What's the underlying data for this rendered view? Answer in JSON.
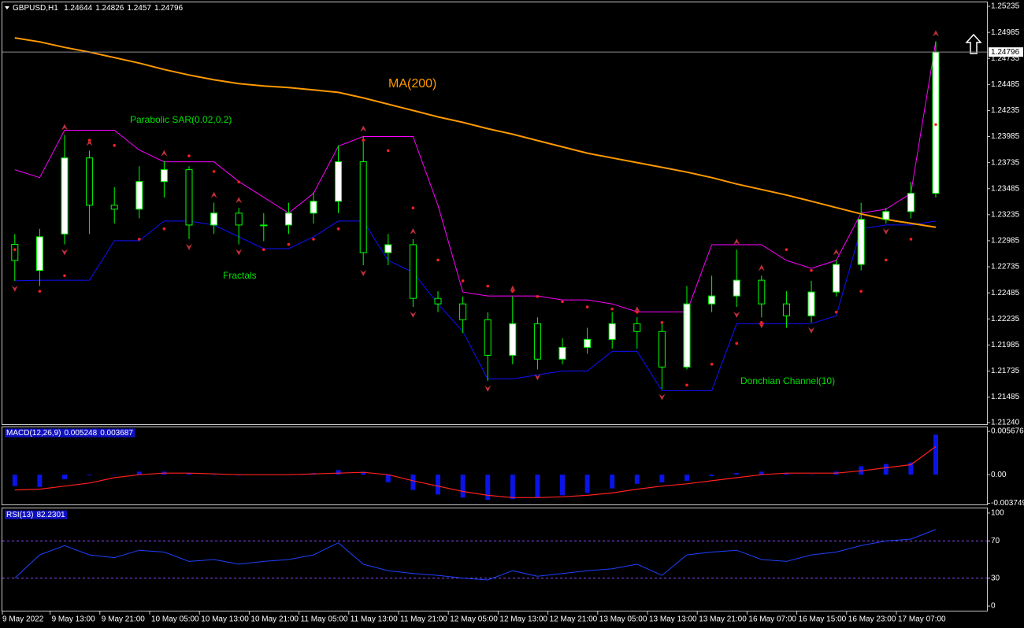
{
  "chart_data": [
    {
      "type": "candlestick",
      "title": "GBPUSD,H1",
      "header_ohlc": [
        1.24644,
        1.24826,
        1.2457,
        1.24796
      ],
      "categories": [
        "9 May 2022",
        null,
        null,
        "9 May 13:00",
        null,
        "9 May 21:00",
        null,
        "10 May 05:00",
        null,
        "10 May 13:00",
        null,
        "10 May 21:00",
        null,
        "11 May 05:00",
        null,
        "11 May 13:00",
        null,
        "11 May 21:00",
        null,
        "12 May 05:00",
        null,
        "12 May 13:00",
        null,
        "12 May 21:00",
        null,
        "13 May 05:00",
        null,
        "13 May 13:00",
        null,
        "13 May 21:00",
        null,
        "16 May 07:00",
        null,
        "16 May 15:00",
        null,
        "16 May 23:00",
        null,
        "17 May 07:00"
      ],
      "open": [
        1.2295,
        1.227,
        1.2305,
        1.2378,
        1.23326,
        1.23288,
        1.23553,
        1.23667,
        1.23136,
        1.2325,
        1.23136,
        1.23136,
        1.2325,
        1.23364,
        1.23743,
        1.22871,
        1.22947,
        1.22432,
        1.22379,
        1.22227,
        1.21886,
        1.22189,
        1.21849,
        1.21962,
        1.22038,
        1.22189,
        1.22114,
        1.21773,
        1.22379,
        1.22455,
        1.22606,
        1.22379,
        1.22265,
        1.22493,
        1.22758,
        1.2319,
        1.23265,
        1.2344
      ],
      "high": [
        1.2305,
        1.231,
        1.24,
        1.2385,
        1.235,
        1.237,
        1.2375,
        1.237,
        1.2335,
        1.233,
        1.2325,
        1.2335,
        1.2345,
        1.239,
        1.23985,
        1.2305,
        1.23,
        1.225,
        1.2245,
        1.223,
        1.2245,
        1.2225,
        1.2205,
        1.2215,
        1.223,
        1.2225,
        1.222,
        1.2255,
        1.2265,
        1.229,
        1.2265,
        1.225,
        1.226,
        1.228,
        1.2335,
        1.233,
        1.2355,
        1.249
      ],
      "low": [
        1.226,
        1.2255,
        1.2295,
        1.2305,
        1.2315,
        1.232,
        1.234,
        1.23,
        1.2305,
        1.2295,
        1.2298,
        1.2305,
        1.2315,
        1.2325,
        1.2275,
        1.2275,
        1.2235,
        1.223,
        1.221,
        1.2164,
        1.218,
        1.2175,
        1.218,
        1.219,
        1.2195,
        1.2195,
        1.2156,
        1.2175,
        1.223,
        1.2235,
        1.2225,
        1.2215,
        1.222,
        1.2245,
        1.227,
        1.2315,
        1.232,
        1.234
      ],
      "close": [
        1.22796,
        1.23023,
        1.2378,
        1.23326,
        1.23288,
        1.23553,
        1.23667,
        1.23136,
        1.2325,
        1.23136,
        1.23136,
        1.2325,
        1.23364,
        1.23743,
        1.22871,
        1.22947,
        1.22432,
        1.22379,
        1.22227,
        1.21886,
        1.22189,
        1.21849,
        1.21962,
        1.22038,
        1.22189,
        1.22114,
        1.21773,
        1.22379,
        1.22455,
        1.22606,
        1.22379,
        1.22265,
        1.22493,
        1.22758,
        1.2319,
        1.23265,
        1.2344,
        1.24796
      ],
      "overlays": {
        "ma200": [
          1.24932,
          1.24894,
          1.24841,
          1.24796,
          1.24743,
          1.2469,
          1.24629,
          1.24576,
          1.2453,
          1.24493,
          1.2447,
          1.24455,
          1.24432,
          1.24409,
          1.24356,
          1.24296,
          1.24235,
          1.24174,
          1.24121,
          1.24061,
          1.24008,
          1.23947,
          1.23886,
          1.23826,
          1.2378,
          1.23735,
          1.2369,
          1.23644,
          1.23591,
          1.2353,
          1.23477,
          1.23424,
          1.23364,
          1.23303,
          1.23243,
          1.2319,
          1.23152,
          1.23114
        ],
        "donchian_upper": [
          1.23667,
          1.23591,
          1.24046,
          1.24046,
          1.24046,
          1.23856,
          1.23743,
          1.23743,
          1.23743,
          1.23553,
          1.23402,
          1.2325,
          1.2344,
          1.23894,
          1.23985,
          1.23985,
          1.23985,
          1.23326,
          1.22493,
          1.22455,
          1.22455,
          1.22455,
          1.22417,
          1.22417,
          1.22379,
          1.22303,
          1.22303,
          1.22303,
          1.22947,
          1.22947,
          1.22947,
          1.22796,
          1.2272,
          1.22796,
          1.2325,
          1.23288,
          1.2344,
          1.249
        ],
        "donchian_lower": [
          1.226,
          1.22606,
          1.22606,
          1.22606,
          1.22985,
          1.22985,
          1.23174,
          1.23174,
          1.23136,
          1.23023,
          1.22909,
          1.22909,
          1.23023,
          1.23174,
          1.23174,
          1.22796,
          1.22682,
          1.22379,
          1.22114,
          1.21659,
          1.21659,
          1.21697,
          1.21735,
          1.21735,
          1.21924,
          1.21924,
          1.21546,
          1.21546,
          1.21546,
          1.22189,
          1.22189,
          1.22189,
          1.22189,
          1.22265,
          1.23099,
          1.23136,
          1.23136,
          1.23174
        ],
        "sar": [
          1.229,
          1.225,
          1.2265,
          1.2395,
          1.239,
          1.23,
          1.231,
          1.238,
          1.2365,
          1.2355,
          1.229,
          1.2295,
          1.23,
          1.231,
          1.2395,
          1.2385,
          1.233,
          1.228,
          1.226,
          1.2255,
          1.225,
          1.2245,
          1.224,
          1.2235,
          1.2233,
          1.223,
          1.222,
          1.216,
          1.218,
          1.22,
          1.222,
          1.229,
          1.227,
          1.223,
          1.225,
          1.228,
          1.23,
          1.241
        ],
        "fractals_up": [
          null,
          null,
          1.24,
          1.2385,
          null,
          null,
          1.2375,
          null,
          1.2335,
          1.233,
          null,
          null,
          null,
          null,
          1.23985,
          null,
          1.23,
          null,
          null,
          null,
          1.2245,
          null,
          null,
          null,
          null,
          1.2225,
          null,
          null,
          null,
          1.229,
          1.2265,
          null,
          null,
          1.228,
          null,
          null,
          null,
          1.249
        ],
        "fractals_down": [
          1.226,
          null,
          1.2295,
          null,
          null,
          null,
          null,
          1.23,
          null,
          1.2295,
          null,
          null,
          null,
          null,
          1.2275,
          null,
          1.2235,
          null,
          null,
          1.2164,
          null,
          1.2175,
          null,
          null,
          null,
          null,
          1.2156,
          null,
          null,
          1.2235,
          1.2225,
          null,
          1.222,
          null,
          null,
          1.2315,
          null,
          null
        ]
      },
      "colors": {
        "bull": "#ffffff",
        "bear": "#000000",
        "wick": "#00ff00",
        "ma200": "#ff9900",
        "sar": "#ff2020",
        "donchian_upper": "#ff00ff",
        "donchian_lower": "#1010ff",
        "fractals": "#c0303a"
      },
      "annotations": [
        {
          "text": "MA(200)",
          "color": "#ff9900"
        },
        {
          "text": "Parabolic SAR(0.02,0.2)",
          "color": "#00e000"
        },
        {
          "text": "Fractals",
          "color": "#00e000"
        },
        {
          "text": "Donchian Channel(10)",
          "color": "#00e000"
        }
      ],
      "ylim": [
        1.21217,
        1.25273
      ],
      "yticks": [
        1.25235,
        1.24985,
        1.24735,
        1.24485,
        1.24235,
        1.23985,
        1.23735,
        1.23485,
        1.23235,
        1.22985,
        1.22735,
        1.22485,
        1.22235,
        1.21985,
        1.21735,
        1.21485,
        {
          "value": 1.2124,
          "label": "1.21240"
        }
      ]
    },
    {
      "type": "macd",
      "title": "MACD(12,26,9)",
      "series": [
        {
          "name": "histogram",
          "color": "#0a14e6",
          "values": [
            -0.0015,
            -0.0016,
            -0.0006,
            -0.0001,
            0,
            0.0004,
            0.0004,
            0.0002,
            0,
            -0.0001,
            0,
            0,
            0.0002,
            0.0006,
            0.0004,
            -0.001,
            -0.002,
            -0.0026,
            -0.003,
            -0.0033,
            -0.0032,
            -0.003,
            -0.0027,
            -0.0024,
            -0.0018,
            -0.0012,
            -0.001,
            -0.0008,
            -0.0002,
            0.0002,
            0.0004,
            0.0002,
            0,
            0.0004,
            0.0011,
            0.0014,
            0.0016,
            0.005248
          ]
        },
        {
          "name": "signal",
          "color": "#ff2020",
          "values": [
            -0.002,
            -0.0019,
            -0.0015,
            -0.0011,
            -0.0004,
            0,
            0.0002,
            0.0002,
            0.0001,
            0,
            0,
            0,
            0.0001,
            0.0002,
            0.0003,
            0,
            -0.0008,
            -0.0015,
            -0.0022,
            -0.0027,
            -0.003,
            -0.003,
            -0.0029,
            -0.0027,
            -0.0024,
            -0.0019,
            -0.0015,
            -0.0012,
            -0.0008,
            -0.0004,
            0,
            0.0002,
            0.0002,
            0.0002,
            0.0005,
            0.0009,
            0.0013,
            0.003687
          ]
        }
      ],
      "ylim": [
        -0.0039,
        0.0062
      ],
      "yticks": [
        0.005676,
        {
          "value": 0,
          "label": "0.00"
        },
        -0.003749
      ]
    },
    {
      "type": "line",
      "title": "RSI(13)",
      "color": "#2040ff",
      "level_color": "#8a4cff",
      "values": [
        30,
        55,
        65,
        55,
        52,
        60,
        58,
        48,
        50,
        45,
        48,
        50,
        55,
        68,
        45,
        38,
        35,
        33,
        30,
        28,
        38,
        32,
        35,
        38,
        40,
        45,
        33,
        55,
        58,
        60,
        50,
        48,
        55,
        58,
        65,
        70,
        72,
        82.2301
      ],
      "ylim": [
        -5,
        105
      ],
      "yticks": [
        100,
        70,
        30,
        0
      ]
    }
  ]
}
